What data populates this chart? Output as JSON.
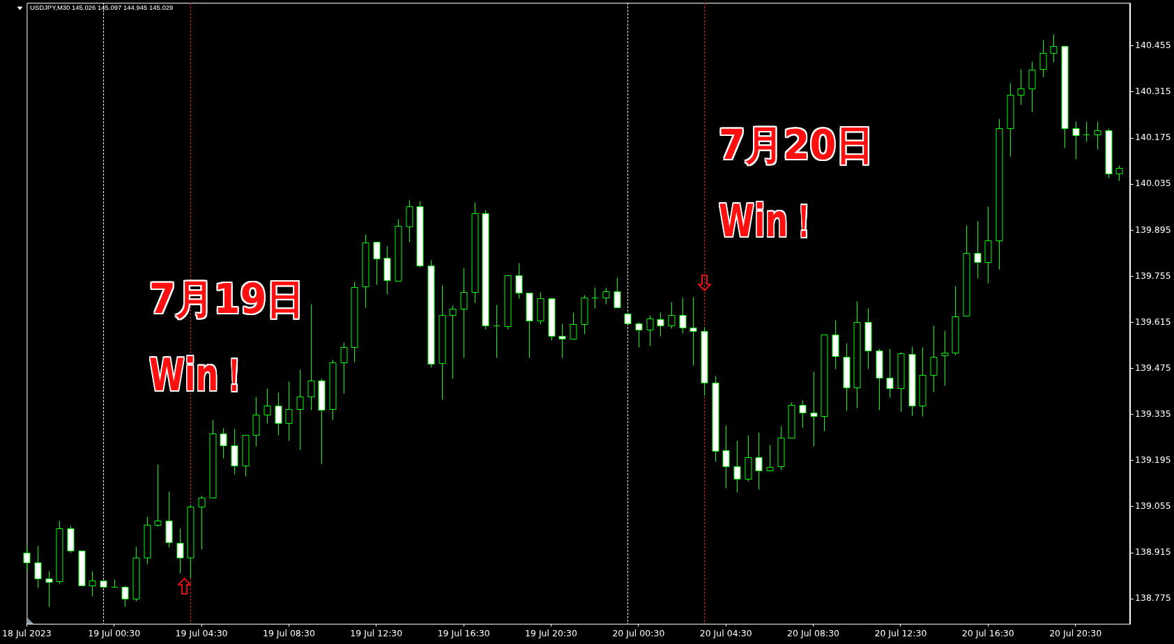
{
  "chart_data": {
    "type": "candlestick",
    "title": "USDJPY,M30 145.026 145.097 144.945 145.029",
    "x": [
      "2023-07-18T20:30",
      "2023-07-18T21:00",
      "2023-07-18T21:30",
      "2023-07-18T22:00",
      "2023-07-18T22:30",
      "2023-07-18T23:00",
      "2023-07-18T23:30",
      "2023-07-19T00:00",
      "2023-07-19T00:30",
      "2023-07-19T01:00",
      "2023-07-19T01:30",
      "2023-07-19T02:00",
      "2023-07-19T02:30",
      "2023-07-19T03:00",
      "2023-07-19T03:30",
      "2023-07-19T04:00",
      "2023-07-19T04:30",
      "2023-07-19T05:00",
      "2023-07-19T05:30",
      "2023-07-19T06:00",
      "2023-07-19T06:30",
      "2023-07-19T07:00",
      "2023-07-19T07:30",
      "2023-07-19T08:00",
      "2023-07-19T08:30",
      "2023-07-19T09:00",
      "2023-07-19T09:30",
      "2023-07-19T10:00",
      "2023-07-19T10:30",
      "2023-07-19T11:00",
      "2023-07-19T11:30",
      "2023-07-19T12:00",
      "2023-07-19T12:30",
      "2023-07-19T13:00",
      "2023-07-19T13:30",
      "2023-07-19T14:00",
      "2023-07-19T14:30",
      "2023-07-19T15:00",
      "2023-07-19T15:30",
      "2023-07-19T16:00",
      "2023-07-19T16:30",
      "2023-07-19T17:00",
      "2023-07-19T17:30",
      "2023-07-19T18:00",
      "2023-07-19T18:30",
      "2023-07-19T19:00",
      "2023-07-19T19:30",
      "2023-07-19T20:00",
      "2023-07-19T20:30",
      "2023-07-19T21:00",
      "2023-07-19T21:30",
      "2023-07-19T22:00",
      "2023-07-19T22:30",
      "2023-07-19T23:00",
      "2023-07-19T23:30",
      "2023-07-20T00:00",
      "2023-07-20T00:30",
      "2023-07-20T01:00",
      "2023-07-20T01:30",
      "2023-07-20T02:00",
      "2023-07-20T02:30",
      "2023-07-20T03:00",
      "2023-07-20T03:30",
      "2023-07-20T04:00",
      "2023-07-20T04:30",
      "2023-07-20T05:00",
      "2023-07-20T05:30",
      "2023-07-20T06:00",
      "2023-07-20T06:30",
      "2023-07-20T07:00",
      "2023-07-20T07:30",
      "2023-07-20T08:00",
      "2023-07-20T08:30",
      "2023-07-20T09:00",
      "2023-07-20T09:30",
      "2023-07-20T10:00",
      "2023-07-20T10:30",
      "2023-07-20T11:00",
      "2023-07-20T11:30",
      "2023-07-20T12:00",
      "2023-07-20T12:30",
      "2023-07-20T13:00",
      "2023-07-20T13:30",
      "2023-07-20T14:00",
      "2023-07-20T14:30",
      "2023-07-20T15:00",
      "2023-07-20T15:30",
      "2023-07-20T16:00",
      "2023-07-20T16:30",
      "2023-07-20T17:00",
      "2023-07-20T17:30",
      "2023-07-20T18:00",
      "2023-07-20T18:30",
      "2023-07-20T19:00",
      "2023-07-20T19:30",
      "2023-07-20T20:00",
      "2023-07-20T20:30",
      "2023-07-20T21:00",
      "2023-07-20T21:30",
      "2023-07-20T22:00",
      "2023-07-20T22:30"
    ],
    "ohlc": [
      [
        138.914,
        138.934,
        138.861,
        138.885
      ],
      [
        138.885,
        138.936,
        138.81,
        138.837
      ],
      [
        138.836,
        138.859,
        138.751,
        138.826
      ],
      [
        138.828,
        139.012,
        138.821,
        138.989
      ],
      [
        138.989,
        138.998,
        138.914,
        138.921
      ],
      [
        138.921,
        138.921,
        138.815,
        138.815
      ],
      [
        138.815,
        138.859,
        138.783,
        138.83
      ],
      [
        138.83,
        138.83,
        138.811,
        138.811
      ],
      [
        138.811,
        138.834,
        138.811,
        138.811
      ],
      [
        138.811,
        138.816,
        138.752,
        138.775
      ],
      [
        138.775,
        138.934,
        138.768,
        138.9
      ],
      [
        138.9,
        139.025,
        138.882,
        138.999
      ],
      [
        138.999,
        139.184,
        138.996,
        139.012
      ],
      [
        139.012,
        139.102,
        138.931,
        138.946
      ],
      [
        138.944,
        138.989,
        138.854,
        138.9
      ],
      [
        138.9,
        139.061,
        138.838,
        139.054
      ],
      [
        139.054,
        139.088,
        138.926,
        139.082
      ],
      [
        139.082,
        139.32,
        139.082,
        139.277
      ],
      [
        139.277,
        139.294,
        139.202,
        139.241
      ],
      [
        139.241,
        139.291,
        139.154,
        139.179
      ],
      [
        139.179,
        139.272,
        139.149,
        139.272
      ],
      [
        139.272,
        139.389,
        139.238,
        139.334
      ],
      [
        139.334,
        139.415,
        139.308,
        139.361
      ],
      [
        139.361,
        139.402,
        139.272,
        139.308
      ],
      [
        139.308,
        139.436,
        139.255,
        139.351
      ],
      [
        139.351,
        139.472,
        139.229,
        139.389
      ],
      [
        139.389,
        139.671,
        139.35,
        139.438
      ],
      [
        139.438,
        139.444,
        139.187,
        139.349
      ],
      [
        139.351,
        139.502,
        139.32,
        139.493
      ],
      [
        139.493,
        139.555,
        139.399,
        139.539
      ],
      [
        139.539,
        139.739,
        139.496,
        139.721
      ],
      [
        139.723,
        139.883,
        139.661,
        139.857
      ],
      [
        139.859,
        139.862,
        139.731,
        139.808
      ],
      [
        139.81,
        139.846,
        139.7,
        139.743
      ],
      [
        139.74,
        139.93,
        139.74,
        139.908
      ],
      [
        139.906,
        139.987,
        139.86,
        139.967
      ],
      [
        139.967,
        139.985,
        139.783,
        139.787
      ],
      [
        139.787,
        139.804,
        139.478,
        139.488
      ],
      [
        139.491,
        139.728,
        139.382,
        139.637
      ],
      [
        139.637,
        139.666,
        139.445,
        139.656
      ],
      [
        139.656,
        139.781,
        139.509,
        139.707
      ],
      [
        139.707,
        139.981,
        139.676,
        139.946
      ],
      [
        139.946,
        139.957,
        139.594,
        139.605
      ],
      [
        139.605,
        139.669,
        139.509,
        139.605
      ],
      [
        139.603,
        139.76,
        139.594,
        139.758
      ],
      [
        139.758,
        139.796,
        139.687,
        139.705
      ],
      [
        139.705,
        139.705,
        139.509,
        139.62
      ],
      [
        139.62,
        139.707,
        139.609,
        139.688
      ],
      [
        139.688,
        139.69,
        139.562,
        139.573
      ],
      [
        139.573,
        139.612,
        139.507,
        139.565
      ],
      [
        139.565,
        139.646,
        139.565,
        139.609
      ],
      [
        139.609,
        139.699,
        139.581,
        139.69
      ],
      [
        139.69,
        139.722,
        139.659,
        139.69
      ],
      [
        139.69,
        139.719,
        139.672,
        139.709
      ],
      [
        139.709,
        139.752,
        139.66,
        139.66
      ],
      [
        139.641,
        139.641,
        139.611,
        139.611
      ],
      [
        139.611,
        139.616,
        139.539,
        139.592
      ],
      [
        139.592,
        139.637,
        139.543,
        139.626
      ],
      [
        139.624,
        139.645,
        139.573,
        139.605
      ],
      [
        139.605,
        139.677,
        139.598,
        139.637
      ],
      [
        139.637,
        139.69,
        139.583,
        139.599
      ],
      [
        139.599,
        139.693,
        139.484,
        139.588
      ],
      [
        139.588,
        139.601,
        139.393,
        139.431
      ],
      [
        139.431,
        139.453,
        139.193,
        139.224
      ],
      [
        139.226,
        139.303,
        139.111,
        139.177
      ],
      [
        139.177,
        139.256,
        139.1,
        139.139
      ],
      [
        139.139,
        139.273,
        139.134,
        139.205
      ],
      [
        139.205,
        139.281,
        139.107,
        139.164
      ],
      [
        139.164,
        139.243,
        139.162,
        139.175
      ],
      [
        139.177,
        139.3,
        139.167,
        139.264
      ],
      [
        139.264,
        139.372,
        139.264,
        139.364
      ],
      [
        139.364,
        139.378,
        139.296,
        139.34
      ],
      [
        139.34,
        139.465,
        139.239,
        139.33
      ],
      [
        139.33,
        139.577,
        139.285,
        139.577
      ],
      [
        139.577,
        139.622,
        139.474,
        139.512
      ],
      [
        139.51,
        139.552,
        139.347,
        139.417
      ],
      [
        139.418,
        139.679,
        139.356,
        139.617
      ],
      [
        139.617,
        139.658,
        139.475,
        139.53
      ],
      [
        139.53,
        139.535,
        139.35,
        139.446
      ],
      [
        139.446,
        139.535,
        139.388,
        139.414
      ],
      [
        139.414,
        139.526,
        139.346,
        139.52
      ],
      [
        139.518,
        139.541,
        139.333,
        139.361
      ],
      [
        139.361,
        139.539,
        139.331,
        139.456
      ],
      [
        139.456,
        139.605,
        139.405,
        139.511
      ],
      [
        139.514,
        139.59,
        139.424,
        139.522
      ],
      [
        139.522,
        139.727,
        139.516,
        139.632
      ],
      [
        139.636,
        139.91,
        139.636,
        139.825
      ],
      [
        139.825,
        139.923,
        139.749,
        139.799
      ],
      [
        139.799,
        139.967,
        139.734,
        139.864
      ],
      [
        139.864,
        140.234,
        139.776,
        140.205
      ],
      [
        140.205,
        140.343,
        140.121,
        140.306
      ],
      [
        140.306,
        140.385,
        140.277,
        140.325
      ],
      [
        140.325,
        140.408,
        140.256,
        140.382
      ],
      [
        140.385,
        140.474,
        140.362,
        140.433
      ],
      [
        140.433,
        140.491,
        140.405,
        140.455
      ],
      [
        140.455,
        140.455,
        140.146,
        140.205
      ],
      [
        140.205,
        140.226,
        140.112,
        140.183
      ],
      [
        140.185,
        140.226,
        140.164,
        140.185
      ],
      [
        140.186,
        140.226,
        140.142,
        140.198
      ],
      [
        140.198,
        140.205,
        140.055,
        140.067
      ],
      [
        140.067,
        140.092,
        140.045,
        140.084
      ]
    ],
    "color": "#00ff00",
    "colors": [
      "#ffffff",
      "#ffffff",
      "#ffffff",
      "#000000",
      "#ffffff",
      "#ffffff",
      "#000000",
      "#ffffff",
      "#00ff00",
      "#ffffff",
      "#000000",
      "#000000",
      "#000000",
      "#ffffff",
      "#ffffff",
      "#000000",
      "#000000",
      "#000000",
      "#ffffff",
      "#ffffff",
      "#000000",
      "#000000",
      "#000000",
      "#ffffff",
      "#000000",
      "#000000",
      "#000000",
      "#ffffff",
      "#000000",
      "#000000",
      "#000000",
      "#000000",
      "#ffffff",
      "#ffffff",
      "#000000",
      "#000000",
      "#ffffff",
      "#ffffff",
      "#000000",
      "#000000",
      "#000000",
      "#000000",
      "#ffffff",
      "#00ff00",
      "#000000",
      "#ffffff",
      "#ffffff",
      "#000000",
      "#ffffff",
      "#ffffff",
      "#000000",
      "#000000",
      "#00ff00",
      "#000000",
      "#ffffff",
      "#ffffff",
      "#ffffff",
      "#000000",
      "#ffffff",
      "#000000",
      "#ffffff",
      "#ffffff",
      "#ffffff",
      "#ffffff",
      "#ffffff",
      "#ffffff",
      "#000000",
      "#ffffff",
      "#000000",
      "#000000",
      "#000000",
      "#ffffff",
      "#ffffff",
      "#000000",
      "#ffffff",
      "#ffffff",
      "#000000",
      "#ffffff",
      "#ffffff",
      "#ffffff",
      "#000000",
      "#ffffff",
      "#000000",
      "#000000",
      "#000000",
      "#000000",
      "#000000",
      "#ffffff",
      "#000000",
      "#000000",
      "#000000",
      "#000000",
      "#000000",
      "#000000",
      "#000000",
      "#ffffff",
      "#ffffff",
      "#00ff00",
      "#000000",
      "#ffffff",
      "#000000"
    ],
    "xlim": [
      "2023-07-18T20:30",
      "2023-07-20T23:00"
    ],
    "xticks": [
      {
        "value": "2023-07-18T20:30",
        "label": "18 Jul 2023"
      },
      {
        "value": "2023-07-19T00:30",
        "label": "19 Jul 00:30"
      },
      {
        "value": "2023-07-19T04:30",
        "label": "19 Jul 04:30"
      },
      {
        "value": "2023-07-19T08:30",
        "label": "19 Jul 08:30"
      },
      {
        "value": "2023-07-19T12:30",
        "label": "19 Jul 12:30"
      },
      {
        "value": "2023-07-19T16:30",
        "label": "19 Jul 16:30"
      },
      {
        "value": "2023-07-19T20:30",
        "label": "19 Jul 20:30"
      },
      {
        "value": "2023-07-20T00:30",
        "label": "20 Jul 00:30"
      },
      {
        "value": "2023-07-20T04:30",
        "label": "20 Jul 04:30"
      },
      {
        "value": "2023-07-20T08:30",
        "label": "20 Jul 08:30"
      },
      {
        "value": "2023-07-20T12:30",
        "label": "20 Jul 12:30"
      },
      {
        "value": "2023-07-20T16:30",
        "label": "20 Jul 16:30"
      },
      {
        "value": "2023-07-20T20:30",
        "label": "20 Jul 20:30"
      }
    ],
    "ylim": [
      138.699,
      140.586
    ],
    "yticks": [
      138.775,
      138.915,
      139.055,
      139.195,
      139.335,
      139.475,
      139.615,
      139.755,
      139.895,
      140.035,
      140.175,
      140.315,
      140.455
    ],
    "grid": false,
    "legend": false,
    "ref_lines": [
      {
        "axis": "x",
        "value": "2023-07-19T00:00",
        "color": "#ffffff",
        "line_style": "dotted"
      },
      {
        "axis": "x",
        "value": "2023-07-19T04:00",
        "color": "#e01010",
        "line_style": "dotted"
      },
      {
        "axis": "x",
        "value": "2023-07-20T00:00",
        "color": "#ffffff",
        "line_style": "dotted"
      },
      {
        "axis": "x",
        "value": "2023-07-20T03:30",
        "color": "#e01010",
        "line_style": "dotted"
      }
    ],
    "annotations": [
      "7月19日",
      "Win！",
      "7月20日",
      "Win！"
    ]
  }
}
